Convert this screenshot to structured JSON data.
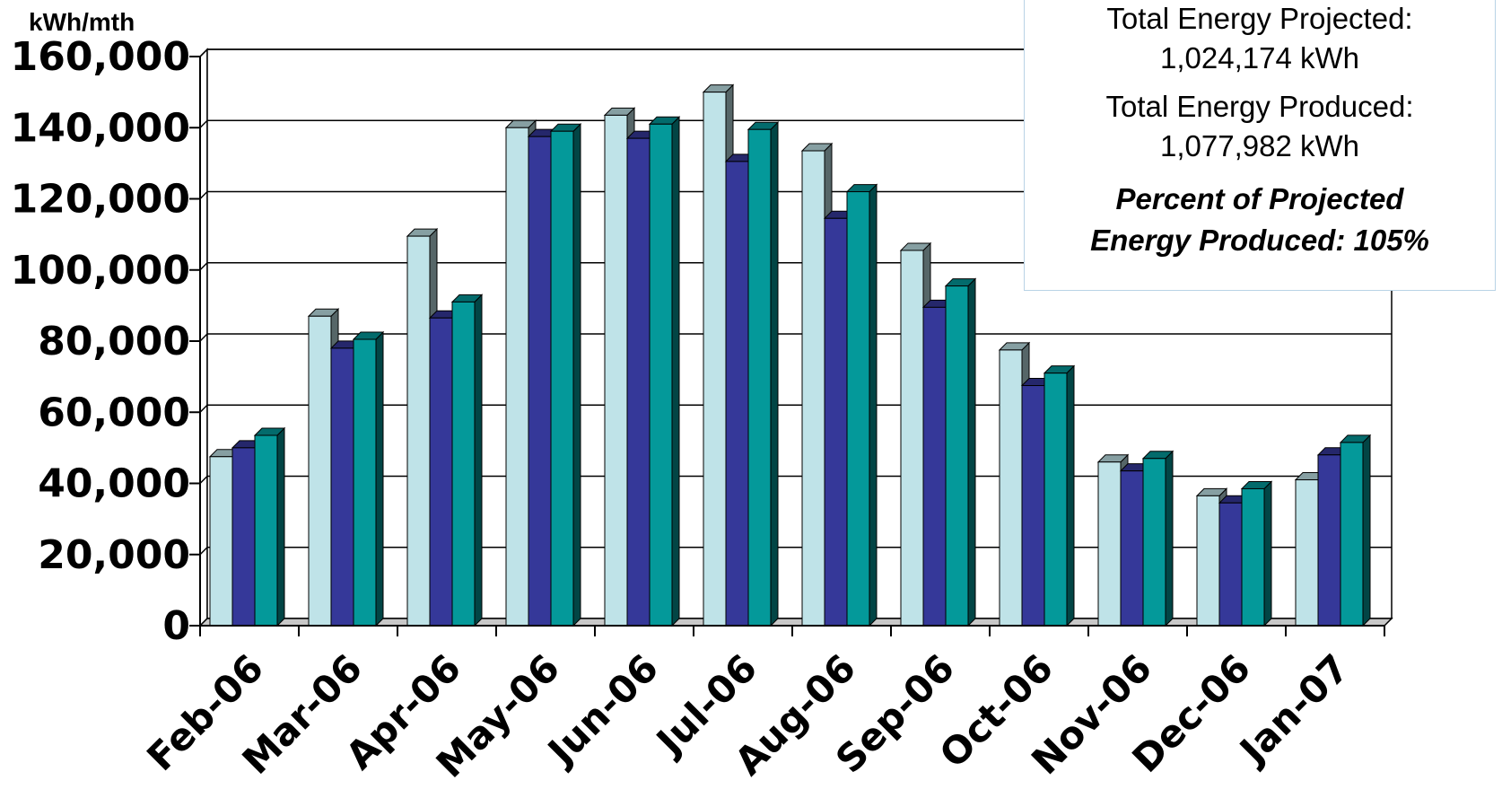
{
  "chart_data": {
    "type": "bar",
    "ylabel": "kWh/mth",
    "ylim": [
      0,
      160000
    ],
    "yticks": [
      "0",
      "20,000",
      "40,000",
      "60,000",
      "80,000",
      "100,000",
      "120,000",
      "140,000",
      "160,000"
    ],
    "categories": [
      "Feb-06",
      "Mar-06",
      "Apr-06",
      "May-06",
      "Jun-06",
      "Jul-06",
      "Aug-06",
      "Sep-06",
      "Oct-06",
      "Nov-06",
      "Dec-06",
      "Jan-07"
    ],
    "grid": true,
    "style": "3d",
    "series": [
      {
        "color": "#bfe3e8",
        "values": [
          47500,
          87000,
          109500,
          140000,
          143500,
          150000,
          133500,
          105500,
          77500,
          46000,
          36500,
          41000
        ]
      },
      {
        "color": "#353899",
        "values": [
          50000,
          78000,
          86500,
          137500,
          137000,
          130500,
          114500,
          89500,
          67500,
          43500,
          34500,
          48000
        ]
      },
      {
        "color": "#04999a",
        "values": [
          53500,
          80500,
          91000,
          139000,
          141000,
          139500,
          122000,
          95500,
          71000,
          47000,
          38500,
          51500
        ]
      }
    ]
  },
  "summary": {
    "projected_label": "Total Energy Projected:",
    "projected_value": "1,024,174 kWh",
    "produced_label": "Total Energy Produced:",
    "produced_value": "1,077,982 kWh",
    "percent_line1": "Percent of Projected",
    "percent_line2": "Energy Produced: 105%"
  }
}
